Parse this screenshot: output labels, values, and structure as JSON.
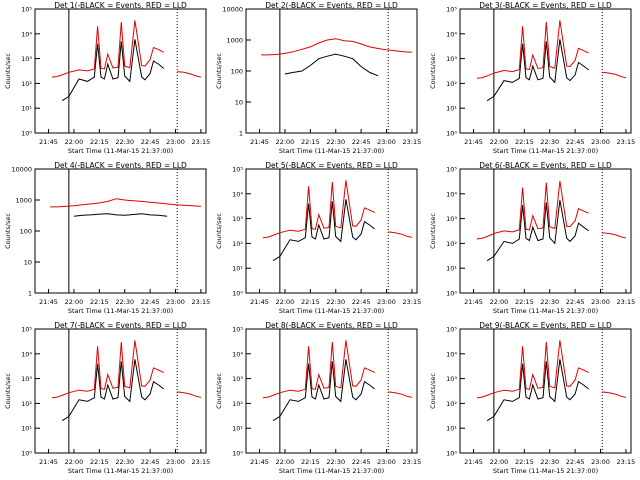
{
  "chart_data": {
    "type": "line",
    "scale_y": "log",
    "grid": false,
    "x_ticks": [
      "21:45",
      "22:00",
      "22:15",
      "22:30",
      "22:45",
      "23:00",
      "23:15"
    ],
    "xlabel": "Start Time (11-Mar-15 21:37:00)",
    "ylabel": "Counts/sec",
    "series_names": [
      "Events",
      "LLD"
    ],
    "colors": {
      "Events": "#000000",
      "LLD": "#e00000"
    },
    "panels": [
      {
        "title": "Det 1(-BLACK = Events, RED = LLD",
        "ylim": [
          1,
          100000
        ],
        "y_ticks": [
          "10⁰",
          "10¹",
          "10²",
          "10³",
          "10⁴",
          "10⁵"
        ],
        "x": [
          "21:46",
          "21:47",
          "21:50",
          "21:53",
          "21:57",
          "22:03",
          "22:08",
          "22:12",
          "22:14",
          "22:16",
          "22:18",
          "22:20",
          "22:23",
          "22:26",
          "22:28",
          "22:30",
          "22:33",
          "22:36",
          "22:40",
          "22:42",
          "22:45",
          "22:47",
          "22:50",
          "22:53",
          "22:55",
          "22:58",
          "23:01",
          "23:05",
          "23:09",
          "23:12",
          "23:15"
        ],
        "series": [
          {
            "name": "Events",
            "values": [
              null,
              null,
              null,
              20,
              30,
              150,
              120,
              180,
              4000,
              180,
              150,
              600,
              150,
              170,
              5000,
              200,
              120,
              6000,
              180,
              140,
              250,
              800,
              600,
              400,
              null,
              null,
              null,
              null,
              null,
              null,
              null
            ]
          },
          {
            "name": "LLD",
            "values": [
              null,
              180,
              190,
              220,
              280,
              350,
              320,
              380,
              20000,
              400,
              380,
              1500,
              420,
              450,
              30000,
              500,
              430,
              35000,
              520,
              500,
              900,
              2800,
              2300,
              1800,
              null,
              null,
              300,
              280,
              240,
              200,
              180
            ]
          }
        ]
      },
      {
        "title": "Det 2(-BLACK = Events, RED = LLD",
        "ylim": [
          1,
          10000
        ],
        "y_ticks": [
          "1",
          "10",
          "100",
          "1000",
          "10000"
        ],
        "x": [
          "21:46",
          "21:50",
          "21:55",
          "22:00",
          "22:05",
          "22:10",
          "22:15",
          "22:20",
          "22:25",
          "22:30",
          "22:35",
          "22:40",
          "22:45",
          "22:50",
          "22:55",
          "23:00",
          "23:05",
          "23:10",
          "23:15"
        ],
        "series": [
          {
            "name": "Events",
            "values": [
              null,
              null,
              null,
              80,
              90,
              100,
              150,
              250,
              300,
              350,
              300,
              250,
              140,
              90,
              70,
              null,
              null,
              null,
              null
            ]
          },
          {
            "name": "LLD",
            "values": [
              330,
              330,
              340,
              370,
              420,
              500,
              600,
              800,
              1000,
              1100,
              950,
              900,
              750,
              600,
              530,
              480,
              450,
              420,
              400
            ]
          }
        ]
      },
      {
        "title": "Det 3(-BLACK = Events, RED = LLD",
        "ylim": [
          1,
          100000
        ],
        "y_ticks": [
          "10⁰",
          "10¹",
          "10²",
          "10³",
          "10⁴",
          "10⁵"
        ],
        "x": [
          "21:46",
          "21:47",
          "21:50",
          "21:53",
          "21:57",
          "22:03",
          "22:08",
          "22:12",
          "22:14",
          "22:16",
          "22:18",
          "22:20",
          "22:23",
          "22:26",
          "22:28",
          "22:30",
          "22:33",
          "22:36",
          "22:40",
          "22:42",
          "22:45",
          "22:47",
          "22:50",
          "22:53",
          "22:55",
          "22:58",
          "23:01",
          "23:05",
          "23:09",
          "23:12",
          "23:15"
        ],
        "series": [
          {
            "name": "Events",
            "values": [
              null,
              null,
              null,
              20,
              30,
              130,
              110,
              160,
              4000,
              170,
              140,
              500,
              140,
              160,
              5000,
              180,
              110,
              6000,
              170,
              130,
              220,
              700,
              500,
              350,
              null,
              null,
              null,
              null,
              null,
              null,
              null
            ]
          },
          {
            "name": "LLD",
            "values": [
              null,
              160,
              170,
              200,
              260,
              330,
              300,
              360,
              20000,
              380,
              360,
              1400,
              400,
              430,
              30000,
              480,
              410,
              35000,
              500,
              480,
              850,
              2600,
              2100,
              1700,
              null,
              null,
              280,
              260,
              230,
              190,
              170
            ]
          }
        ]
      },
      {
        "title": "Det 4(-BLACK = Events, RED = LLD",
        "ylim": [
          1,
          10000
        ],
        "y_ticks": [
          "1",
          "10",
          "100",
          "1000",
          "10000"
        ],
        "x": [
          "21:46",
          "21:50",
          "21:55",
          "22:00",
          "22:05",
          "22:10",
          "22:15",
          "22:20",
          "22:25",
          "22:30",
          "22:35",
          "22:40",
          "22:45",
          "22:50",
          "22:55",
          "23:00",
          "23:05",
          "23:10",
          "23:15"
        ],
        "series": [
          {
            "name": "Events",
            "values": [
              null,
              null,
              null,
              300,
              320,
              330,
              350,
              360,
              330,
              320,
              340,
              360,
              330,
              320,
              300,
              null,
              null,
              null,
              null
            ]
          },
          {
            "name": "LLD",
            "values": [
              600,
              600,
              620,
              650,
              700,
              750,
              800,
              900,
              1100,
              1000,
              950,
              900,
              850,
              800,
              750,
              700,
              680,
              650,
              620
            ]
          }
        ]
      },
      {
        "title": "Det 5(-BLACK = Events, RED = LLD",
        "ylim": [
          1,
          100000
        ],
        "y_ticks": [
          "10⁰",
          "10¹",
          "10²",
          "10³",
          "10⁴",
          "10⁵"
        ],
        "x": [
          "21:46",
          "21:47",
          "21:50",
          "21:53",
          "21:57",
          "22:03",
          "22:08",
          "22:12",
          "22:14",
          "22:16",
          "22:18",
          "22:20",
          "22:23",
          "22:26",
          "22:28",
          "22:30",
          "22:33",
          "22:36",
          "22:40",
          "22:42",
          "22:45",
          "22:47",
          "22:50",
          "22:53",
          "22:55",
          "22:58",
          "23:01",
          "23:05",
          "23:09",
          "23:12",
          "23:15"
        ],
        "series": [
          {
            "name": "Events",
            "values": [
              null,
              null,
              null,
              20,
              30,
              140,
              120,
              170,
              4000,
              180,
              150,
              550,
              150,
              170,
              5000,
              190,
              120,
              6000,
              180,
              140,
              240,
              750,
              550,
              380,
              null,
              null,
              null,
              null,
              null,
              null,
              null
            ]
          },
          {
            "name": "LLD",
            "values": [
              null,
              170,
              180,
              210,
              270,
              340,
              310,
              370,
              20000,
              390,
              370,
              1450,
              410,
              440,
              30000,
              490,
              420,
              35000,
              510,
              490,
              880,
              2700,
              2200,
              1750,
              null,
              null,
              290,
              270,
              235,
              195,
              175
            ]
          }
        ]
      },
      {
        "title": "Det 6(-BLACK = Events, RED = LLD",
        "ylim": [
          1,
          100000
        ],
        "y_ticks": [
          "10⁰",
          "10¹",
          "10²",
          "10³",
          "10⁴",
          "10⁵"
        ],
        "x": [
          "21:46",
          "21:47",
          "21:50",
          "21:53",
          "21:57",
          "22:03",
          "22:08",
          "22:12",
          "22:14",
          "22:16",
          "22:18",
          "22:20",
          "22:23",
          "22:26",
          "22:28",
          "22:30",
          "22:33",
          "22:36",
          "22:40",
          "22:42",
          "22:45",
          "22:47",
          "22:50",
          "22:53",
          "22:55",
          "22:58",
          "23:01",
          "23:05",
          "23:09",
          "23:12",
          "23:15"
        ],
        "series": [
          {
            "name": "Events",
            "values": [
              null,
              null,
              null,
              20,
              30,
              120,
              100,
              150,
              3500,
              160,
              130,
              450,
              130,
              150,
              4500,
              170,
              100,
              5500,
              160,
              120,
              200,
              650,
              450,
              320,
              null,
              null,
              null,
              null,
              null,
              null,
              null
            ]
          },
          {
            "name": "LLD",
            "values": [
              null,
              150,
              160,
              190,
              250,
              320,
              290,
              350,
              18000,
              370,
              350,
              1300,
              390,
              420,
              28000,
              470,
              400,
              33000,
              490,
              470,
              820,
              2500,
              2000,
              1650,
              null,
              null,
              270,
              250,
              220,
              185,
              165
            ]
          }
        ]
      },
      {
        "title": "Det 7(-BLACK = Events, RED = LLD",
        "ylim": [
          1,
          100000
        ],
        "y_ticks": [
          "10⁰",
          "10¹",
          "10²",
          "10³",
          "10⁴",
          "10⁵"
        ],
        "x": [
          "21:46",
          "21:47",
          "21:50",
          "21:53",
          "21:57",
          "22:03",
          "22:08",
          "22:12",
          "22:14",
          "22:16",
          "22:18",
          "22:20",
          "22:23",
          "22:26",
          "22:28",
          "22:30",
          "22:33",
          "22:36",
          "22:40",
          "22:42",
          "22:45",
          "22:47",
          "22:50",
          "22:53",
          "22:55",
          "22:58",
          "23:01",
          "23:05",
          "23:09",
          "23:12",
          "23:15"
        ],
        "series": [
          {
            "name": "Events",
            "values": [
              null,
              null,
              null,
              20,
              30,
              140,
              120,
              170,
              4000,
              180,
              150,
              550,
              150,
              170,
              5000,
              190,
              120,
              6000,
              180,
              140,
              240,
              750,
              550,
              380,
              null,
              null,
              null,
              null,
              null,
              null,
              null
            ]
          },
          {
            "name": "LLD",
            "values": [
              null,
              170,
              180,
              210,
              270,
              340,
              310,
              370,
              20000,
              390,
              370,
              1450,
              410,
              440,
              30000,
              490,
              420,
              35000,
              510,
              490,
              880,
              2700,
              2200,
              1750,
              null,
              null,
              290,
              270,
              235,
              195,
              175
            ]
          }
        ]
      },
      {
        "title": "Det 8(-BLACK = Events, RED = LLD",
        "ylim": [
          1,
          100000
        ],
        "y_ticks": [
          "10⁰",
          "10¹",
          "10²",
          "10³",
          "10⁴",
          "10⁵"
        ],
        "x": [
          "21:46",
          "21:47",
          "21:50",
          "21:53",
          "21:57",
          "22:03",
          "22:08",
          "22:12",
          "22:14",
          "22:16",
          "22:18",
          "22:20",
          "22:23",
          "22:26",
          "22:28",
          "22:30",
          "22:33",
          "22:36",
          "22:40",
          "22:42",
          "22:45",
          "22:47",
          "22:50",
          "22:53",
          "22:55",
          "22:58",
          "23:01",
          "23:05",
          "23:09",
          "23:12",
          "23:15"
        ],
        "series": [
          {
            "name": "Events",
            "values": [
              null,
              null,
              null,
              20,
              30,
              140,
              120,
              170,
              4000,
              180,
              150,
              550,
              150,
              170,
              5000,
              190,
              120,
              6000,
              180,
              140,
              240,
              750,
              550,
              380,
              null,
              null,
              null,
              null,
              null,
              null,
              null
            ]
          },
          {
            "name": "LLD",
            "values": [
              null,
              170,
              180,
              210,
              270,
              340,
              310,
              370,
              20000,
              390,
              370,
              1450,
              410,
              440,
              30000,
              490,
              420,
              35000,
              510,
              490,
              880,
              2700,
              2200,
              1750,
              null,
              null,
              290,
              270,
              235,
              195,
              175
            ]
          }
        ]
      },
      {
        "title": "Det 9(-BLACK = Events, RED = LLD",
        "ylim": [
          1,
          100000
        ],
        "y_ticks": [
          "10⁰",
          "10¹",
          "10²",
          "10³",
          "10⁴",
          "10⁵"
        ],
        "x": [
          "21:46",
          "21:47",
          "21:50",
          "21:53",
          "21:57",
          "22:03",
          "22:08",
          "22:12",
          "22:14",
          "22:16",
          "22:18",
          "22:20",
          "22:23",
          "22:26",
          "22:28",
          "22:30",
          "22:33",
          "22:36",
          "22:40",
          "22:42",
          "22:45",
          "22:47",
          "22:50",
          "22:53",
          "22:55",
          "22:58",
          "23:01",
          "23:05",
          "23:09",
          "23:12",
          "23:15"
        ],
        "series": [
          {
            "name": "Events",
            "values": [
              null,
              null,
              null,
              20,
              30,
              140,
              120,
              170,
              4000,
              180,
              150,
              550,
              150,
              170,
              5000,
              190,
              120,
              6000,
              180,
              140,
              240,
              750,
              550,
              380,
              null,
              null,
              null,
              null,
              null,
              null,
              null
            ]
          },
          {
            "name": "LLD",
            "values": [
              null,
              170,
              180,
              210,
              270,
              340,
              310,
              370,
              20000,
              390,
              370,
              1450,
              410,
              440,
              30000,
              490,
              420,
              35000,
              510,
              490,
              880,
              2700,
              2200,
              1750,
              null,
              null,
              290,
              270,
              235,
              195,
              175
            ]
          }
        ]
      }
    ]
  }
}
